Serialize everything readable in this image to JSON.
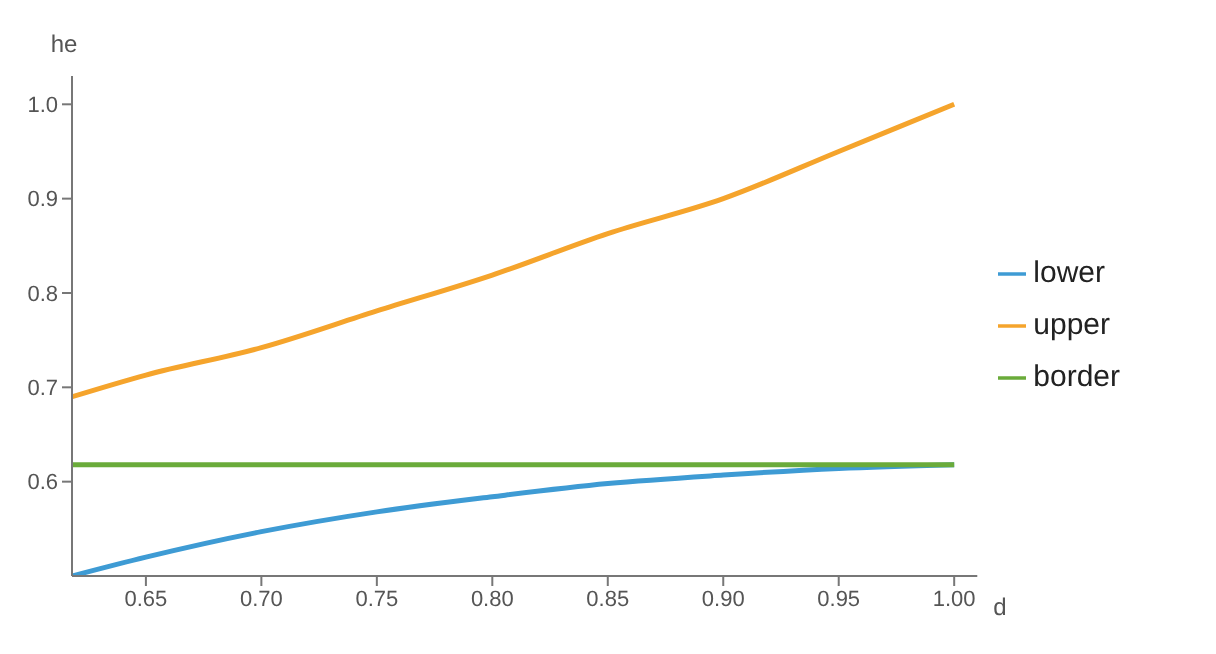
{
  "chart_data": {
    "type": "line",
    "xlabel": "d",
    "ylabel": "he",
    "x": [
      0.618,
      0.65,
      0.7,
      0.75,
      0.8,
      0.85,
      0.9,
      0.95,
      1.0
    ],
    "series": [
      {
        "name": "lower",
        "color": "#3e9bd4",
        "values": [
          0.5,
          0.52,
          0.547,
          0.568,
          0.584,
          0.598,
          0.607,
          0.614,
          0.618
        ]
      },
      {
        "name": "upper",
        "color": "#f5a42c",
        "values": [
          0.69,
          0.713,
          0.742,
          0.781,
          0.819,
          0.863,
          0.9,
          0.95,
          1.0
        ]
      },
      {
        "name": "border",
        "color": "#6aab3a",
        "values": [
          0.618,
          0.618,
          0.618,
          0.618,
          0.618,
          0.618,
          0.618,
          0.618,
          0.618
        ]
      }
    ],
    "xlim": [
      0.618,
      1.01
    ],
    "xticks": [
      0.65,
      {
        "value": 0.7,
        "label": "0.70"
      },
      0.75,
      {
        "value": 0.8,
        "label": "0.80"
      },
      0.85,
      {
        "value": 0.9,
        "label": "0.90"
      },
      0.95,
      {
        "value": 1,
        "label": "1.00"
      }
    ],
    "ylim": [
      0.5,
      1.03
    ],
    "yticks": [
      0.6,
      0.7,
      0.8,
      0.9,
      {
        "value": 1,
        "label": "1.0"
      }
    ],
    "grid": false,
    "legend": "right",
    "marker": "none",
    "line_style": "solid"
  }
}
